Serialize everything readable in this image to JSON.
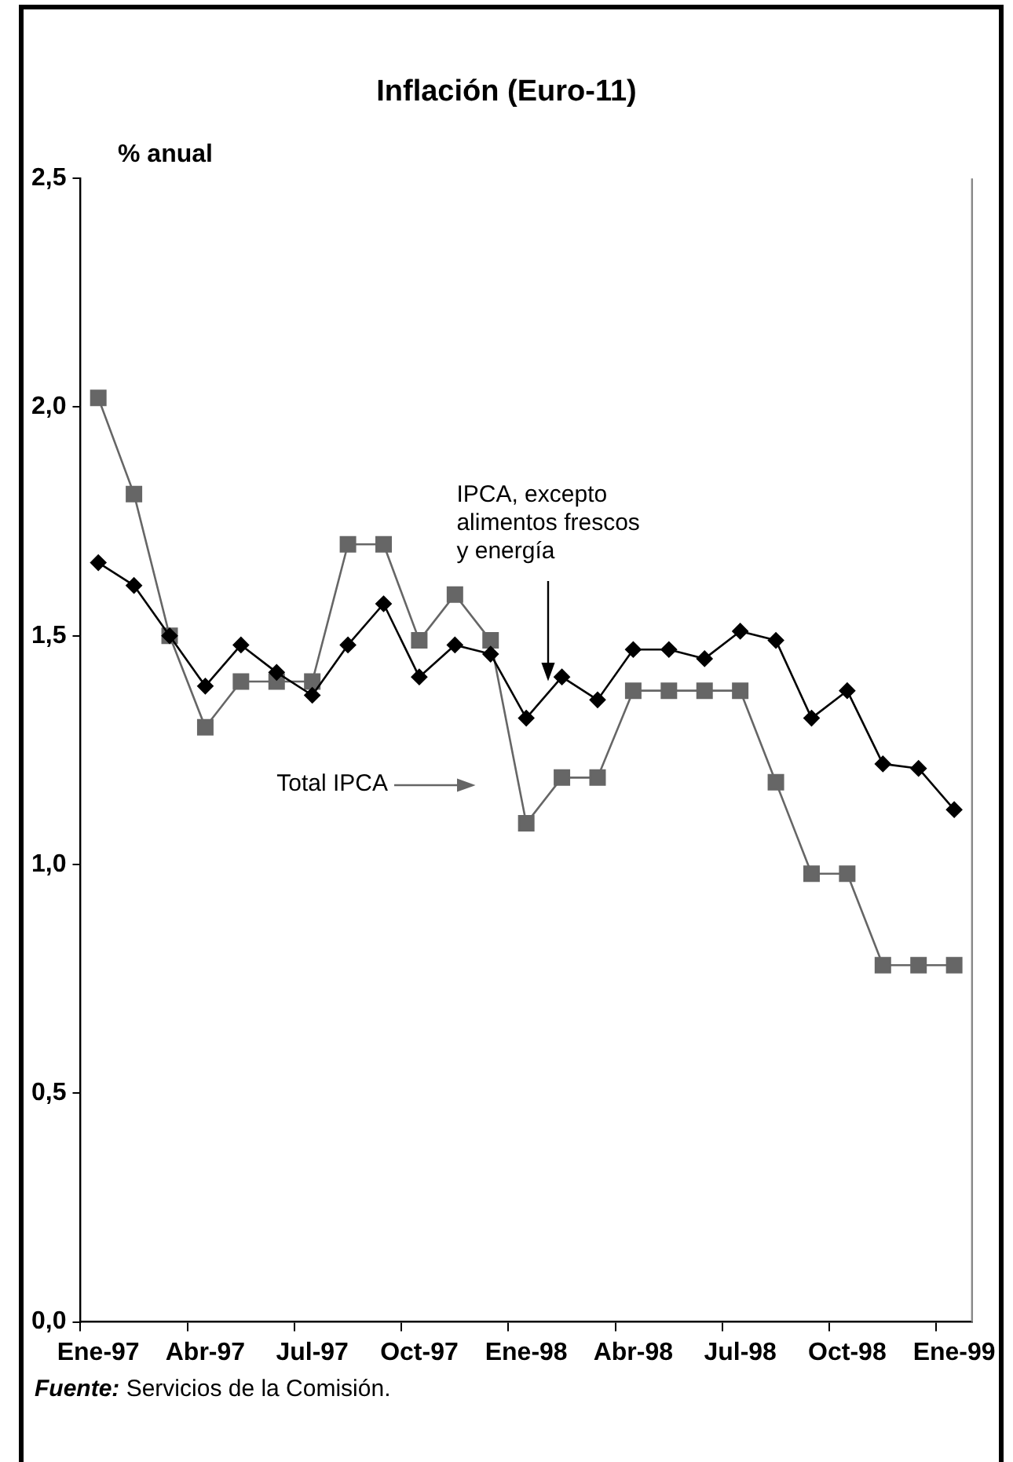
{
  "chart_data": {
    "type": "line",
    "title": "Inflación (Euro-11)",
    "ylabel": "% anual",
    "categories": [
      "Ene-97",
      null,
      null,
      "Abr-97",
      null,
      null,
      "Jul-97",
      null,
      null,
      "Oct-97",
      null,
      null,
      "Ene-98",
      null,
      null,
      "Abr-98",
      null,
      null,
      "Jul-98",
      null,
      null,
      "Oct-98",
      null,
      null,
      "Ene-99"
    ],
    "series": [
      {
        "name": "IPCA, excepto alimentos frescos y energía",
        "color": "#000000",
        "marker": "diamond",
        "values": [
          1.66,
          1.61,
          1.5,
          1.39,
          1.48,
          1.42,
          1.37,
          1.48,
          1.57,
          1.41,
          1.48,
          1.46,
          1.32,
          1.41,
          1.36,
          1.47,
          1.47,
          1.45,
          1.51,
          1.49,
          1.32,
          1.38,
          1.22,
          1.21,
          1.12
        ]
      },
      {
        "name": "Total IPCA",
        "color": "#666666",
        "marker": "square",
        "values": [
          2.02,
          1.81,
          1.5,
          1.3,
          1.4,
          1.4,
          1.4,
          1.7,
          1.7,
          1.49,
          1.59,
          1.49,
          1.09,
          1.19,
          1.19,
          1.38,
          1.38,
          1.38,
          1.38,
          1.18,
          0.98,
          0.98,
          0.78,
          0.78,
          0.78
        ]
      }
    ],
    "ylim": [
      0,
      2.5
    ],
    "yticks": [
      {
        "value": 0,
        "label": "0,0"
      },
      {
        "value": 0.5,
        "label": "0,5"
      },
      {
        "value": 1,
        "label": "1,0"
      },
      {
        "value": 1.5,
        "label": "1,5"
      },
      {
        "value": 2,
        "label": "2,0"
      },
      {
        "value": 2.5,
        "label": "2,5"
      }
    ],
    "annotations": [
      "Fuente: Servicios de la Comisión."
    ]
  }
}
